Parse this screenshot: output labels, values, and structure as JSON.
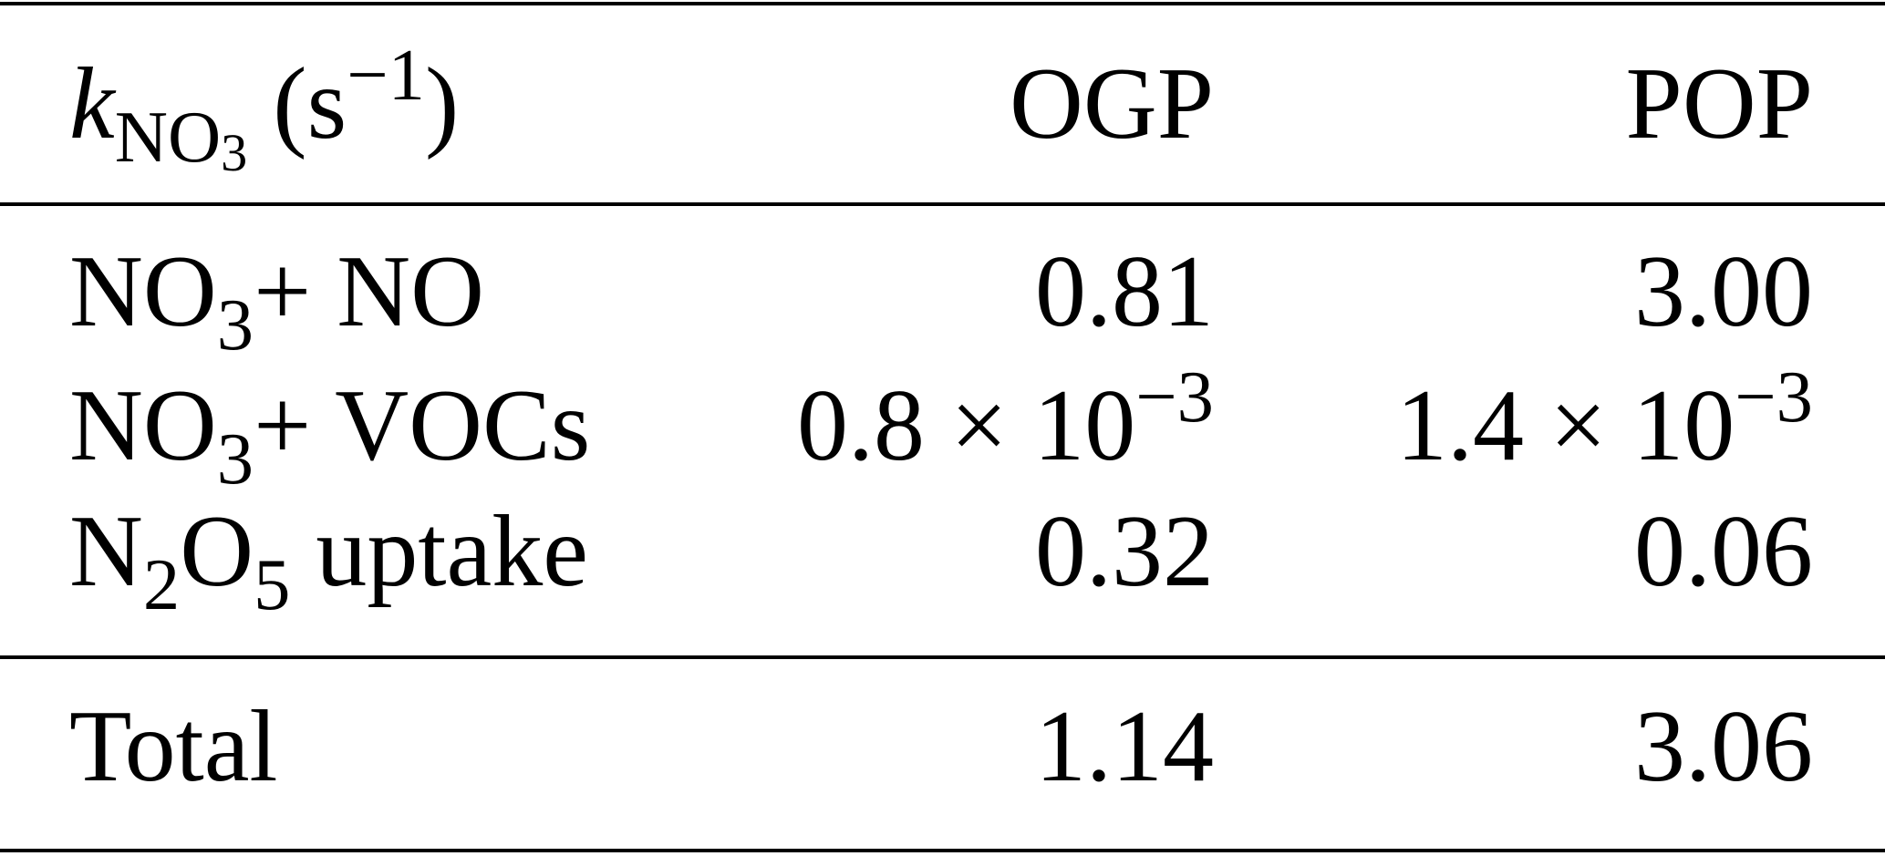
{
  "table": {
    "header": [
      [
        {
          "text": "k",
          "style": "italic"
        },
        {
          "text": "NO",
          "style": "sub"
        },
        {
          "text": "3",
          "style": "subsub"
        },
        {
          "text": " (s",
          "style": "normal"
        },
        {
          "text": "−1",
          "style": "sup"
        },
        {
          "text": ")",
          "style": "normal"
        }
      ],
      "OGP",
      "POP"
    ],
    "rows": [
      [
        [
          {
            "text": "NO",
            "style": "normal"
          },
          {
            "text": "3",
            "style": "sub"
          },
          {
            "text": "+ NO",
            "style": "normal"
          }
        ],
        "0.81",
        "3.00"
      ],
      [
        [
          {
            "text": "NO",
            "style": "normal"
          },
          {
            "text": "3",
            "style": "sub"
          },
          {
            "text": "+ VOCs",
            "style": "normal"
          }
        ],
        [
          {
            "text": "0.8 × 10",
            "style": "normal"
          },
          {
            "text": "−3",
            "style": "sup"
          }
        ],
        [
          {
            "text": "1.4 × 10",
            "style": "normal"
          },
          {
            "text": "−3",
            "style": "sup"
          }
        ]
      ],
      [
        [
          {
            "text": "N",
            "style": "normal"
          },
          {
            "text": "2",
            "style": "sub"
          },
          {
            "text": "O",
            "style": "normal"
          },
          {
            "text": "5",
            "style": "sub"
          },
          {
            "text": " uptake",
            "style": "normal"
          }
        ],
        "0.32",
        "0.06"
      ]
    ],
    "total": [
      "Total",
      "1.14",
      "3.06"
    ]
  }
}
